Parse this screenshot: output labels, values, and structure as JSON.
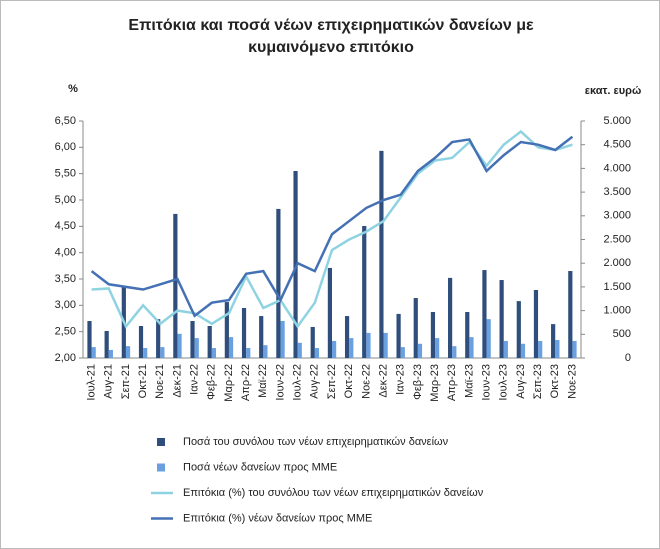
{
  "chart_data": {
    "type": "bar",
    "title": "Επιτόκια και ποσά νέων επιχειρηματικών δανείων με κυμαινόμενο επιτόκιο",
    "ylabel": "%",
    "y2label": "εκατ. ευρώ",
    "categories": [
      "Ιουλ-21",
      "Αυγ-21",
      "Σεπ-21",
      "Οκτ-21",
      "Νοε-21",
      "Δεκ-21",
      "Ιαν-22",
      "Φεβ-22",
      "Μαρ-22",
      "Απρ-22",
      "Μαϊ-22",
      "Ιουν-22",
      "Ιουλ-22",
      "Αυγ-22",
      "Σεπ-22",
      "Οκτ-22",
      "Νοε-22",
      "Δεκ-22",
      "Ιαν-23",
      "Φεβ-23",
      "Μαρ-23",
      "Απρ-23",
      "Μαϊ-23",
      "Ιουν-23",
      "Ιουλ-23",
      "Αυγ-23",
      "Σεπ-23",
      "Οκτ-23",
      "Νοε-23"
    ],
    "series": [
      {
        "name": "Ποσά του συνόλου των νέων επιχειρηματικών δανείων",
        "type": "bar",
        "axis": "y2",
        "color": "#2f4e7c",
        "values": [
          780,
          570,
          1520,
          675,
          820,
          3040,
          780,
          675,
          1180,
          1055,
          885,
          3145,
          3945,
          655,
          1900,
          885,
          2785,
          4370,
          930,
          1265,
          970,
          1690,
          970,
          1855,
          1645,
          1200,
          1435,
          715,
          1835
        ]
      },
      {
        "name": "Ποσά νέων δανείων προς ΜΜΕ",
        "type": "bar",
        "axis": "y2",
        "color": "#6a9fe0",
        "values": [
          230,
          170,
          250,
          210,
          230,
          510,
          420,
          210,
          440,
          210,
          270,
          780,
          320,
          210,
          360,
          420,
          530,
          530,
          230,
          300,
          420,
          250,
          440,
          820,
          360,
          300,
          360,
          380,
          360
        ]
      },
      {
        "name": "Επιτόκια (%) του συνόλου των νέων επιχειρηματικών δανείων",
        "type": "line",
        "axis": "y",
        "color": "#8fd3e3",
        "values": [
          3.3,
          3.32,
          2.6,
          3.0,
          2.65,
          2.9,
          2.85,
          2.65,
          2.85,
          3.55,
          2.95,
          3.1,
          2.6,
          3.05,
          4.05,
          4.25,
          4.4,
          4.6,
          5.05,
          5.5,
          5.75,
          5.8,
          6.1,
          5.65,
          6.05,
          6.3,
          6.0,
          5.95,
          6.05
        ]
      },
      {
        "name": "Επιτόκια (%) νέων δανείων προς ΜΜΕ",
        "type": "line",
        "axis": "y",
        "color": "#4470b4",
        "values": [
          3.65,
          3.4,
          3.35,
          3.3,
          3.4,
          3.5,
          2.8,
          3.05,
          3.1,
          3.6,
          3.65,
          3.1,
          3.8,
          3.65,
          4.35,
          4.6,
          4.85,
          5.0,
          5.1,
          5.55,
          5.8,
          6.1,
          6.15,
          5.55,
          5.85,
          6.1,
          6.05,
          5.95,
          6.2
        ]
      }
    ],
    "ylim": [
      2,
      6.5
    ],
    "yticks": [
      {
        "value": 2,
        "label": "2,00"
      },
      {
        "value": 2.5,
        "label": "2,50"
      },
      {
        "value": 3,
        "label": "3,00"
      },
      {
        "value": 3.5,
        "label": "3,50"
      },
      {
        "value": 4,
        "label": "4,00"
      },
      {
        "value": 4.5,
        "label": "4,50"
      },
      {
        "value": 5,
        "label": "5,00"
      },
      {
        "value": 5.5,
        "label": "5,50"
      },
      {
        "value": 6,
        "label": "6,00"
      },
      {
        "value": 6.5,
        "label": "6,50"
      }
    ],
    "y2lim": [
      0,
      5000
    ],
    "y2ticks": [
      0,
      500,
      {
        "value": 1000,
        "label": "1.000"
      },
      {
        "value": 1500,
        "label": "1.500"
      },
      {
        "value": 2000,
        "label": "2.000"
      },
      {
        "value": 2500,
        "label": "2.500"
      },
      {
        "value": 3000,
        "label": "3.000"
      },
      {
        "value": 3500,
        "label": "3.500"
      },
      {
        "value": 4000,
        "label": "4.000"
      },
      {
        "value": 4500,
        "label": "4.500"
      },
      {
        "value": 5000,
        "label": "5.000"
      }
    ],
    "grid": false
  }
}
